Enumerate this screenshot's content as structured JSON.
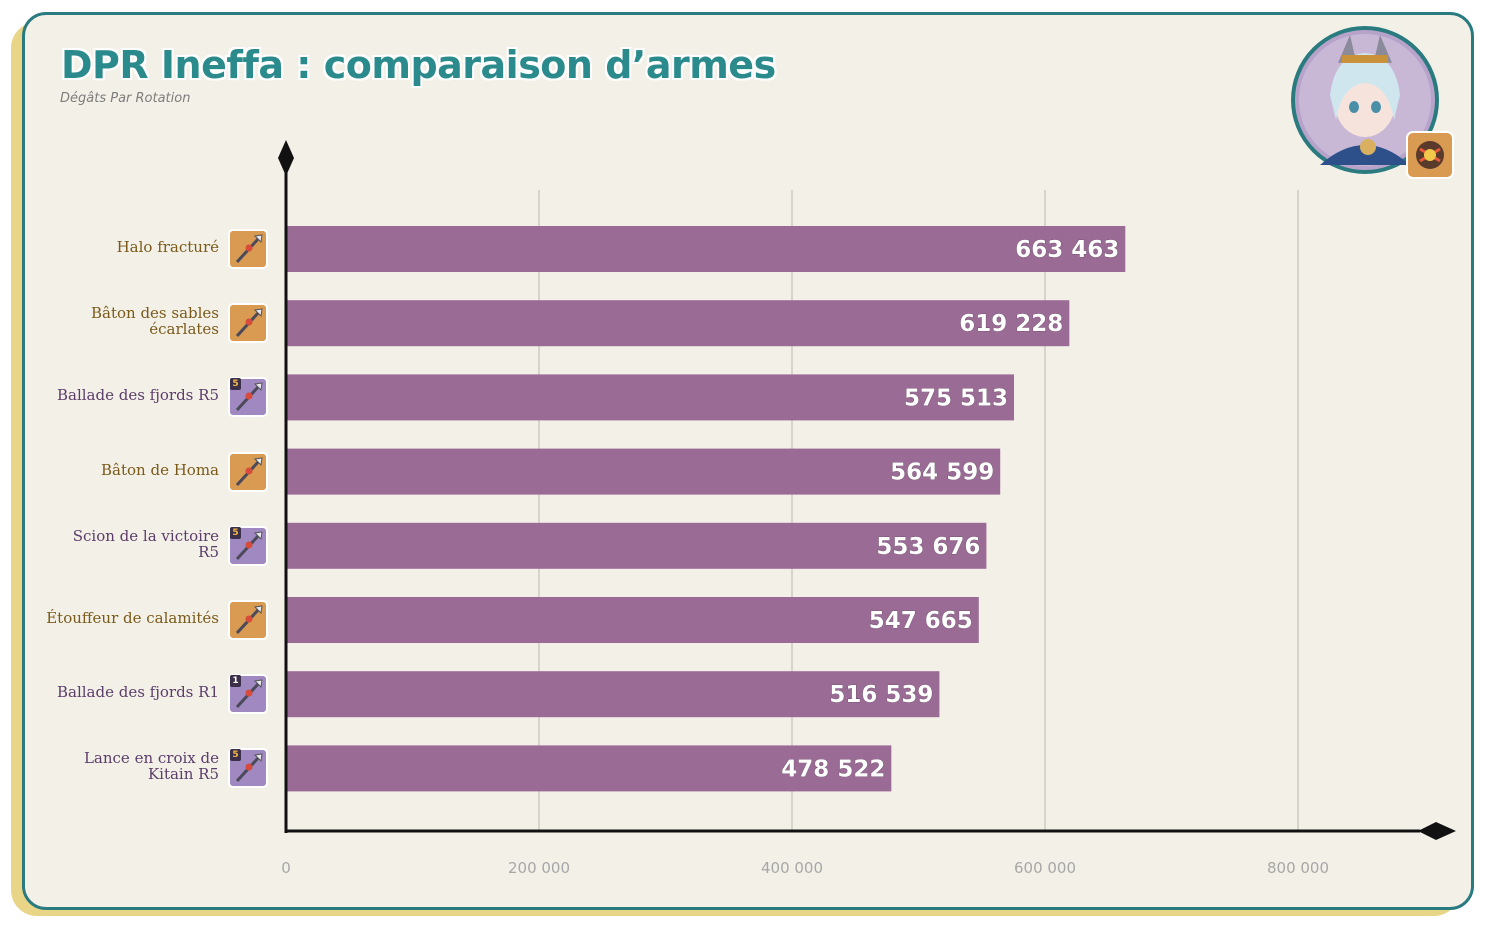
{
  "header": {
    "title": "DPR Ineffa : comparaison d’armes",
    "subtitle": "Dégâts Par Rotation"
  },
  "colors": {
    "bar": "#9a6b95",
    "frame": "#2a7b7f",
    "title": "#2a8a8c",
    "shadow": "#e8d587",
    "background": "#f3f0e8",
    "five_star_icon": "#d99a52",
    "four_star_icon": "#a088c0"
  },
  "icons": {
    "avatar": "ineffa-portrait-icon",
    "element": "electro-element-icon"
  },
  "chart_data": {
    "type": "bar",
    "orientation": "horizontal",
    "categories": [
      "Halo fracturé",
      "Bâton des sables écarlates",
      "Ballade des fjords R5",
      "Bâton de Homa",
      "Scion de la victoire R5",
      "Étouffeur de calamités",
      "Ballade des fjords R1",
      "Lance en croix de Kitain R5"
    ],
    "category_lines": [
      [
        "Halo fracturé"
      ],
      [
        "Bâton des sables",
        "écarlates"
      ],
      [
        "Ballade des fjords R5"
      ],
      [
        "Bâton de Homa"
      ],
      [
        "Scion de la victoire",
        "R5"
      ],
      [
        "Étouffeur de calamités"
      ],
      [
        "Ballade des fjords R1"
      ],
      [
        "Lance en croix de",
        "Kitain R5"
      ]
    ],
    "rarity": [
      "5",
      "5",
      "4",
      "5",
      "4",
      "5",
      "4",
      "4"
    ],
    "refinement_badges": [
      "",
      "",
      "5",
      "",
      "5",
      "",
      "1",
      "5"
    ],
    "values": [
      663463,
      619228,
      575513,
      564599,
      553676,
      547665,
      516539,
      478522
    ],
    "value_labels": [
      "663 463",
      "619 228",
      "575 513",
      "564 599",
      "553 676",
      "547 665",
      "516 539",
      "478 522"
    ],
    "xlim": [
      0,
      900000
    ],
    "xticks": [
      0,
      200000,
      400000,
      600000,
      800000
    ],
    "xtick_labels": [
      "0",
      "200 000",
      "400 000",
      "600 000",
      "800 000"
    ],
    "grid": "vertical",
    "title": "DPR Ineffa : comparaison d’armes",
    "xlabel": "",
    "ylabel": ""
  }
}
